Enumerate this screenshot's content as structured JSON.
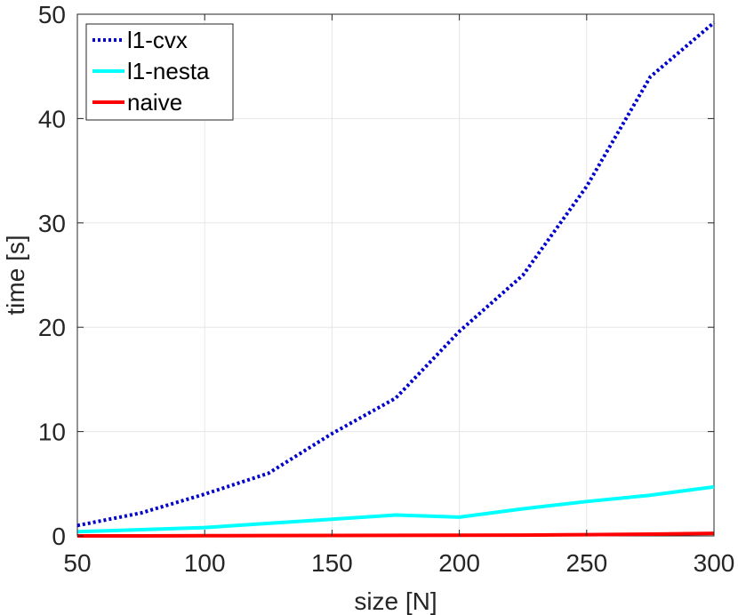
{
  "chart_data": {
    "type": "line",
    "title": "",
    "xlabel": "size [N]",
    "ylabel": "time [s]",
    "xlim": [
      50,
      300
    ],
    "ylim": [
      0,
      50
    ],
    "xticks": [
      50,
      100,
      150,
      200,
      250,
      300
    ],
    "yticks": [
      0,
      10,
      20,
      30,
      40,
      50
    ],
    "grid": true,
    "legend_position": "top-left",
    "series": [
      {
        "name": "l1-cvx",
        "color": "#0000cc",
        "style": "dotted",
        "x": [
          50,
          75,
          100,
          125,
          150,
          175,
          200,
          225,
          250,
          275,
          300
        ],
        "y": [
          1.0,
          2.2,
          4.0,
          6.0,
          9.8,
          13.2,
          19.6,
          25.0,
          33.5,
          44.0,
          49.2
        ]
      },
      {
        "name": "l1-nesta",
        "color": "#00ffff",
        "style": "solid",
        "x": [
          50,
          75,
          100,
          125,
          150,
          175,
          200,
          225,
          250,
          275,
          300
        ],
        "y": [
          0.4,
          0.6,
          0.8,
          1.2,
          1.6,
          2.0,
          1.8,
          2.6,
          3.3,
          3.9,
          4.7
        ]
      },
      {
        "name": "naive",
        "color": "#ff0000",
        "style": "solid",
        "x": [
          50,
          75,
          100,
          125,
          150,
          175,
          200,
          225,
          250,
          275,
          300
        ],
        "y": [
          0.0,
          0.0,
          0.02,
          0.03,
          0.04,
          0.05,
          0.06,
          0.08,
          0.12,
          0.17,
          0.25
        ]
      }
    ]
  }
}
